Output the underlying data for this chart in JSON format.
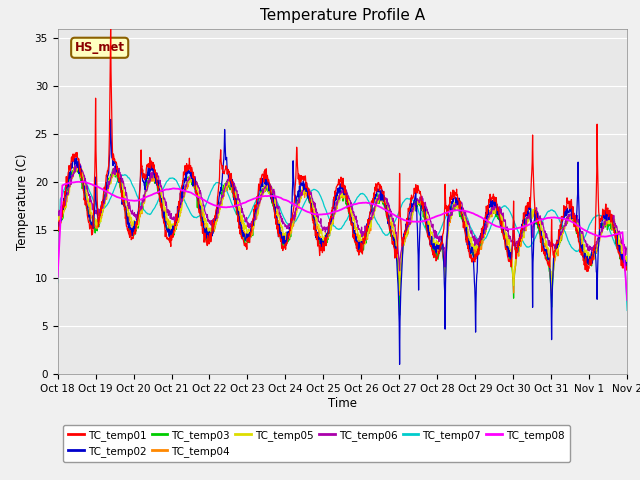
{
  "title": "Temperature Profile A",
  "xlabel": "Time",
  "ylabel": "Temperature (C)",
  "ylim": [
    0,
    36
  ],
  "yticks": [
    0,
    5,
    10,
    15,
    20,
    25,
    30,
    35
  ],
  "annotation": "HS_met",
  "annotation_color": "#8B0000",
  "annotation_bg": "#FFFFC0",
  "annotation_border": "#8B6000",
  "series_colors": {
    "TC_temp01": "#FF0000",
    "TC_temp02": "#0000CC",
    "TC_temp03": "#00CC00",
    "TC_temp04": "#FF8800",
    "TC_temp05": "#DDDD00",
    "TC_temp06": "#AA00AA",
    "TC_temp07": "#00CCCC",
    "TC_temp08": "#FF00FF"
  },
  "xtick_labels": [
    "Oct 18",
    "Oct 19",
    "Oct 20",
    "Oct 21",
    "Oct 22",
    "Oct 23",
    "Oct 24",
    "Oct 25",
    "Oct 26",
    "Oct 27",
    "Oct 28",
    "Oct 29",
    "Oct 30",
    "Oct 31",
    "Nov 1",
    "Nov 2"
  ],
  "fig_facecolor": "#F0F0F0",
  "axes_facecolor": "#E8E8E8",
  "n_days": 15,
  "n_points": 1440
}
